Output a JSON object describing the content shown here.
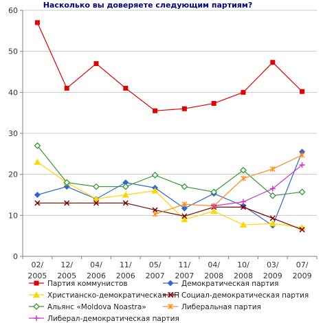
{
  "chart_data": {
    "type": "line",
    "title": "Насколько вы доверяете следующим партиям?",
    "x": [
      "02/ 2005",
      "12/ 2005",
      "04/ 2006",
      "11/ 2006",
      "05/ 2007",
      "11/ 2007",
      "04/ 2008",
      "10/ 2008",
      "03/ 2009",
      "07/ 2009"
    ],
    "ylim": [
      0,
      60
    ],
    "yticks": [
      0,
      10,
      20,
      30,
      40,
      50,
      60
    ],
    "grid": true,
    "legend_position": "bottom",
    "series": [
      {
        "name": "Партия коммунистов",
        "color": "#e00000",
        "marker": "square",
        "values": [
          57,
          41,
          47,
          41,
          35.5,
          36,
          37.3,
          40,
          47.3,
          40.2
        ]
      },
      {
        "name": "Демократическая партия",
        "color": "#3366cc",
        "marker": "diamond",
        "values": [
          15,
          17,
          14,
          18,
          16.7,
          11.7,
          15.3,
          12.3,
          7.5,
          25.5
        ]
      },
      {
        "name": "Христианско-демократическая НП",
        "color": "#ffd700",
        "marker": "triangle",
        "values": [
          23,
          18,
          14,
          15,
          16,
          9,
          11,
          7.7,
          8,
          7
        ]
      },
      {
        "name": "Социал-демократическая партия",
        "color": "#800000",
        "marker": "x",
        "values": [
          13,
          13,
          13,
          13,
          11.3,
          9.8,
          12,
          12,
          9.3,
          6.5
        ]
      },
      {
        "name": "Альянс «Moldova Noastra»",
        "color": "#339933",
        "marker": "open-diamond",
        "values": [
          27,
          18,
          17,
          17,
          19.8,
          17,
          15.7,
          21,
          14.8,
          15.7
        ]
      },
      {
        "name": "Либеральная партия",
        "color": "#ff8c1a",
        "marker": "asterisk",
        "values": [
          null,
          null,
          null,
          null,
          10.3,
          12.7,
          12.3,
          19,
          21.3,
          24.7
        ]
      },
      {
        "name": "Либерал-демократическая партия",
        "color": "#cc33cc",
        "marker": "plus",
        "values": [
          null,
          null,
          null,
          null,
          null,
          null,
          12.3,
          13.3,
          16.5,
          22.3
        ]
      }
    ]
  }
}
